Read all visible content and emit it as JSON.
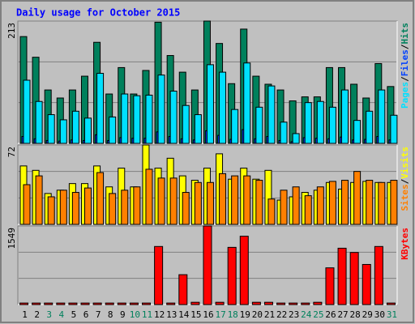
{
  "chart_data": [
    {
      "type": "bar",
      "title": "Daily usage for October 2015",
      "series": [
        {
          "name": "Hits",
          "color": "#00805c",
          "values": [
            186,
            150,
            93,
            79,
            93,
            117,
            176,
            86,
            132,
            86,
            127,
            211,
            153,
            124,
            93,
            213,
            174,
            104,
            199,
            117,
            103,
            93,
            74,
            81,
            81,
            132,
            132,
            103,
            79,
            139,
            99
          ]
        },
        {
          "name": "Files",
          "color": "#0040ff",
          "values": [
            12,
            8,
            5,
            4,
            6,
            5,
            15,
            5,
            10,
            9,
            9,
            20,
            12,
            8,
            6,
            22,
            14,
            7,
            24,
            8,
            12,
            5,
            3,
            10,
            9,
            8,
            11,
            6,
            7,
            12,
            6
          ]
        },
        {
          "name": "Pages",
          "color": "#00e0ff",
          "values": [
            110,
            73,
            50,
            41,
            56,
            44,
            122,
            46,
            86,
            83,
            84,
            119,
            91,
            66,
            50,
            137,
            124,
            59,
            140,
            63,
            100,
            37,
            17,
            71,
            73,
            63,
            93,
            40,
            56,
            93,
            49
          ]
        }
      ],
      "ylim": [
        0,
        213
      ],
      "yticks": [
        213
      ],
      "grid_divisions": 3,
      "legend_separator": "/"
    },
    {
      "type": "bar",
      "series": [
        {
          "name": "Visits",
          "color": "#ffff00",
          "values": [
            53,
            49,
            28,
            31,
            37,
            37,
            53,
            34,
            51,
            34,
            72,
            51,
            60,
            44,
            40,
            51,
            64,
            41,
            51,
            41,
            49,
            22,
            25,
            29,
            31,
            38,
            32,
            38,
            39,
            38,
            38
          ]
        },
        {
          "name": "Sites",
          "color": "#ff8000",
          "values": [
            36,
            44,
            25,
            31,
            29,
            33,
            47,
            28,
            31,
            34,
            50,
            42,
            42,
            29,
            38,
            38,
            46,
            44,
            44,
            40,
            23,
            31,
            34,
            26,
            34,
            39,
            40,
            48,
            40,
            38,
            40
          ]
        }
      ],
      "ylim": [
        0,
        72
      ],
      "yticks": [
        72
      ],
      "grid_divisions": 3,
      "legend_separator": "/"
    },
    {
      "type": "bar",
      "categories": [
        "1",
        "2",
        "3",
        "4",
        "5",
        "6",
        "7",
        "8",
        "9",
        "10",
        "11",
        "12",
        "13",
        "14",
        "15",
        "16",
        "17",
        "18",
        "19",
        "20",
        "21",
        "22",
        "23",
        "24",
        "25",
        "26",
        "27",
        "28",
        "29",
        "30",
        "31"
      ],
      "weekend_days": [
        3,
        4,
        10,
        11,
        17,
        18,
        24,
        25,
        31
      ],
      "weekend_color": "#00805c",
      "series": [
        {
          "name": "KBytes",
          "color": "#ff0000",
          "values": [
            30,
            30,
            30,
            30,
            30,
            30,
            30,
            30,
            30,
            30,
            30,
            1145,
            30,
            589,
            45,
            1549,
            45,
            1128,
            1347,
            45,
            45,
            30,
            30,
            30,
            45,
            724,
            1111,
            1027,
            791,
            1145,
            30
          ]
        }
      ],
      "ylim": [
        0,
        1549
      ],
      "yticks": [
        1549
      ],
      "grid_divisions": 3
    }
  ]
}
